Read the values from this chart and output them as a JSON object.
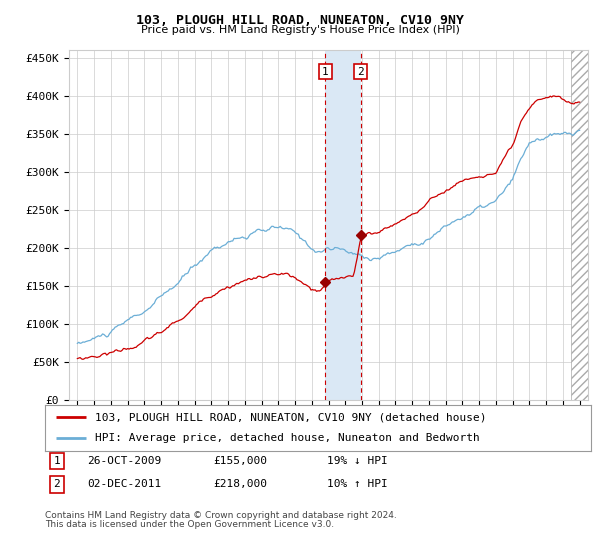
{
  "title": "103, PLOUGH HILL ROAD, NUNEATON, CV10 9NY",
  "subtitle": "Price paid vs. HM Land Registry's House Price Index (HPI)",
  "legend_line1": "103, PLOUGH HILL ROAD, NUNEATON, CV10 9NY (detached house)",
  "legend_line2": "HPI: Average price, detached house, Nuneaton and Bedworth",
  "footnote1": "Contains HM Land Registry data © Crown copyright and database right 2024.",
  "footnote2": "This data is licensed under the Open Government Licence v3.0.",
  "transaction1_date": 2009.82,
  "transaction1_price": 155000,
  "transaction1_label": "1",
  "transaction1_text": "26-OCT-2009",
  "transaction1_amount": "£155,000",
  "transaction1_hpi": "19% ↓ HPI",
  "transaction2_date": 2011.92,
  "transaction2_price": 218000,
  "transaction2_label": "2",
  "transaction2_text": "02-DEC-2011",
  "transaction2_amount": "£218,000",
  "transaction2_hpi": "10% ↑ HPI",
  "hpi_color": "#6baed6",
  "price_color": "#cc0000",
  "marker_color": "#990000",
  "grid_color": "#cccccc",
  "bg_color": "#ffffff",
  "highlight_color": "#dae8f5",
  "vline_color": "#cc0000",
  "hatch_color": "#c8d8e8",
  "ylim": [
    0,
    460000
  ],
  "xlim_start": 1994.5,
  "xlim_end": 2025.5,
  "yticks": [
    0,
    50000,
    100000,
    150000,
    200000,
    250000,
    300000,
    350000,
    400000,
    450000
  ],
  "ytick_labels": [
    "£0",
    "£50K",
    "£100K",
    "£150K",
    "£200K",
    "£250K",
    "£300K",
    "£350K",
    "£400K",
    "£450K"
  ],
  "xtick_years": [
    1995,
    1996,
    1997,
    1998,
    1999,
    2000,
    2001,
    2002,
    2003,
    2004,
    2005,
    2006,
    2007,
    2008,
    2009,
    2010,
    2011,
    2012,
    2013,
    2014,
    2015,
    2016,
    2017,
    2018,
    2019,
    2020,
    2021,
    2022,
    2023,
    2024,
    2025
  ]
}
